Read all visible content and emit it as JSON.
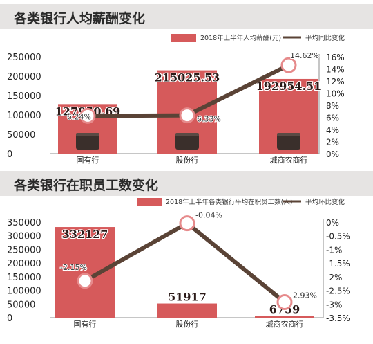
{
  "colors": {
    "bar": "#d65a5b",
    "bar_dark": "#c44b4b",
    "line": "#5a4336",
    "marker_ring": "#e68a8b",
    "header_bg": "#e6e4e3",
    "axis": "#8c8c8c"
  },
  "chart_data": [
    {
      "type": "bar",
      "title": "各类银行人均薪酬变化",
      "categories": [
        "国有行",
        "股份行",
        "城商农商行"
      ],
      "series": [
        {
          "name": "2018年上半年人均薪酬(元)",
          "type": "bar",
          "axis": "left",
          "values": [
            127950.69,
            215025.53,
            192954.51
          ],
          "labels": [
            "127950.69",
            "215025.53",
            "192954.51"
          ]
        },
        {
          "name": "平均同比变化",
          "type": "line",
          "axis": "right",
          "values": [
            6.24,
            6.33,
            14.62
          ],
          "labels": [
            "6.24%",
            "6.33%",
            "14.62%"
          ]
        }
      ],
      "y_left": {
        "min": 0,
        "max": 250000,
        "ticks": [
          "0",
          "50000",
          "100000",
          "150000",
          "200000",
          "250000"
        ]
      },
      "y_right": {
        "min": 0,
        "max": 16,
        "ticks": [
          "0%",
          "2%",
          "4%",
          "6%",
          "8%",
          "10%",
          "12%",
          "14%",
          "16%"
        ]
      },
      "legend_position": "top-right",
      "grid": false
    },
    {
      "type": "bar",
      "title": "各类银行在职员工数变化",
      "categories": [
        "国有行",
        "股份行",
        "城商农商行"
      ],
      "series": [
        {
          "name": "2018年上半年各类银行平均在职员工数(人)",
          "type": "bar",
          "axis": "left",
          "values": [
            332127,
            51917,
            6759
          ],
          "labels": [
            "332127",
            "51917",
            "6759"
          ]
        },
        {
          "name": "平均环比变化",
          "type": "line",
          "axis": "right",
          "values": [
            -2.15,
            -0.04,
            -2.93
          ],
          "labels": [
            "-2.15%",
            "-0.04%",
            "-2.93%"
          ]
        }
      ],
      "y_left": {
        "min": 0,
        "max": 350000,
        "ticks": [
          "0",
          "50000",
          "100000",
          "150000",
          "200000",
          "250000",
          "300000",
          "350000"
        ]
      },
      "y_right": {
        "min": -3.5,
        "max": 0,
        "ticks": [
          "-3.5%",
          "-3%",
          "-2.5%",
          "-2%",
          "-1.5%",
          "-1%",
          "-0.5%",
          "0%"
        ]
      },
      "legend_position": "top-right",
      "grid": false
    }
  ]
}
